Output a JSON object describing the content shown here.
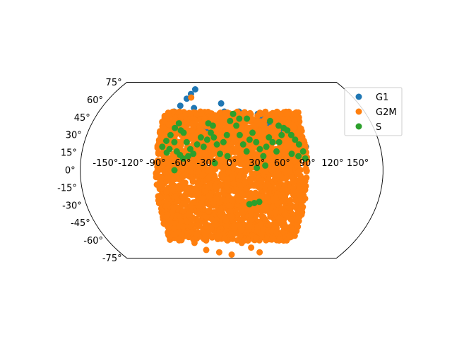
{
  "chart_data": {
    "type": "scatter",
    "projection": "kavrayskiy-vii (truncated at ±75° latitude)",
    "title": "",
    "xlabel": "",
    "ylabel": "",
    "xlim": [
      -180,
      180
    ],
    "ylim": [
      -75,
      75
    ],
    "x_ticks": [
      "-150°",
      "-120°",
      "-90°",
      "-60°",
      "-30°",
      "0°",
      "30°",
      "60°",
      "90°",
      "120°",
      "150°"
    ],
    "x_tick_values": [
      -150,
      -120,
      -90,
      -60,
      -30,
      0,
      30,
      60,
      90,
      120,
      150
    ],
    "y_ticks": [
      "75°",
      "60°",
      "45°",
      "30°",
      "15°",
      "0°",
      "-15°",
      "-30°",
      "-45°",
      "-60°",
      "-75°"
    ],
    "y_tick_values": [
      75,
      60,
      45,
      30,
      15,
      0,
      -15,
      -30,
      -45,
      -60,
      -75
    ],
    "grid": false,
    "legend_position": "top-right",
    "series": [
      {
        "name": "G1",
        "color": "#1f77b4",
        "description": "concentrated in the northern cap",
        "points": [
          [
            -58,
            69
          ],
          [
            -62,
            65
          ],
          [
            -66,
            61
          ],
          [
            -72,
            55
          ],
          [
            -78,
            50
          ],
          [
            -52,
            53
          ],
          [
            -45,
            44
          ],
          [
            -36,
            46
          ],
          [
            -27,
            40
          ],
          [
            -22,
            43
          ],
          [
            -15,
            57
          ],
          [
            -10,
            50
          ],
          [
            -5,
            48
          ],
          [
            5,
            48
          ],
          [
            10,
            50
          ],
          [
            18,
            48
          ],
          [
            22,
            46
          ],
          [
            26,
            44
          ],
          [
            30,
            42
          ],
          [
            35,
            48
          ],
          [
            38,
            44
          ],
          [
            40,
            42
          ],
          [
            44,
            46
          ],
          [
            48,
            40
          ],
          [
            52,
            38
          ],
          [
            58,
            44
          ],
          [
            64,
            45
          ],
          [
            68,
            40
          ],
          [
            72,
            38
          ],
          [
            76,
            35
          ],
          [
            82,
            32
          ],
          [
            86,
            28
          ],
          [
            90,
            20
          ],
          [
            -85,
            30
          ],
          [
            -88,
            22
          ],
          [
            -72,
            38
          ],
          [
            -64,
            32
          ],
          [
            -50,
            32
          ],
          [
            -32,
            34
          ],
          [
            -18,
            38
          ],
          [
            -8,
            30
          ],
          [
            8,
            36
          ],
          [
            16,
            38
          ],
          [
            24,
            32
          ],
          [
            42,
            36
          ],
          [
            55,
            40
          ],
          [
            62,
            34
          ],
          [
            74,
            30
          ],
          [
            80,
            26
          ],
          [
            12,
            42
          ],
          [
            2,
            40
          ],
          [
            -40,
            36
          ],
          [
            -60,
            40
          ],
          [
            -68,
            46
          ]
        ]
      },
      {
        "name": "G2M",
        "color": "#ff7f0e",
        "description": "densely fills the central region from about -90° to 90° longitude",
        "fill_region": {
          "lon": [
            -90,
            90
          ],
          "lat": [
            -60,
            50
          ]
        },
        "points": [
          [
            -60,
            62
          ],
          [
            -50,
            40
          ],
          [
            -40,
            34
          ],
          [
            -20,
            30
          ],
          [
            0,
            33
          ],
          [
            20,
            31
          ],
          [
            45,
            30
          ],
          [
            65,
            28
          ],
          [
            80,
            22
          ],
          [
            -70,
            -55
          ],
          [
            -55,
            -62
          ],
          [
            -40,
            -68
          ],
          [
            -20,
            -70
          ],
          [
            0,
            -72
          ],
          [
            15,
            -62
          ],
          [
            30,
            -66
          ],
          [
            45,
            -70
          ],
          [
            60,
            -58
          ],
          [
            72,
            -48
          ],
          [
            -80,
            -45
          ],
          [
            -82,
            -38
          ],
          [
            -65,
            -48
          ],
          [
            -10,
            -58
          ],
          [
            5,
            -54
          ],
          [
            35,
            -58
          ],
          [
            55,
            -52
          ],
          [
            85,
            -35
          ],
          [
            78,
            -42
          ]
        ]
      },
      {
        "name": "S",
        "color": "#2ca02c",
        "description": "scattered across the northern region, mostly 0° to 60° latitude",
        "points": [
          [
            -84,
            20
          ],
          [
            -80,
            25
          ],
          [
            -76,
            30
          ],
          [
            -72,
            36
          ],
          [
            -68,
            40
          ],
          [
            -64,
            34
          ],
          [
            -60,
            32
          ],
          [
            -55,
            24
          ],
          [
            -50,
            18
          ],
          [
            -46,
            14
          ],
          [
            -62,
            13
          ],
          [
            -66,
            16
          ],
          [
            -70,
            24
          ],
          [
            -75,
            18
          ],
          [
            -78,
            15
          ],
          [
            -58,
            10
          ],
          [
            -52,
            12
          ],
          [
            -42,
            22
          ],
          [
            -38,
            28
          ],
          [
            -34,
            20
          ],
          [
            -30,
            26
          ],
          [
            -26,
            32
          ],
          [
            -22,
            28
          ],
          [
            -18,
            22
          ],
          [
            -14,
            14
          ],
          [
            -10,
            24
          ],
          [
            -6,
            30
          ],
          [
            -2,
            42
          ],
          [
            2,
            48
          ],
          [
            6,
            38
          ],
          [
            10,
            30
          ],
          [
            14,
            22
          ],
          [
            18,
            16
          ],
          [
            22,
            26
          ],
          [
            26,
            32
          ],
          [
            30,
            24
          ],
          [
            34,
            18
          ],
          [
            38,
            12
          ],
          [
            42,
            20
          ],
          [
            46,
            28
          ],
          [
            50,
            24
          ],
          [
            54,
            16
          ],
          [
            58,
            24
          ],
          [
            62,
            30
          ],
          [
            66,
            36
          ],
          [
            70,
            34
          ],
          [
            74,
            30
          ],
          [
            78,
            26
          ],
          [
            82,
            22
          ],
          [
            86,
            16
          ],
          [
            88,
            10
          ],
          [
            -68,
            0
          ],
          [
            -20,
            6
          ],
          [
            -5,
            12
          ],
          [
            30,
            2
          ],
          [
            40,
            4
          ],
          [
            28,
            -28
          ],
          [
            34,
            -27
          ],
          [
            22,
            -29
          ],
          [
            -30,
            40
          ],
          [
            -24,
            38
          ],
          [
            50,
            42
          ],
          [
            60,
            38
          ],
          [
            72,
            14
          ],
          [
            80,
            12
          ],
          [
            10,
            44
          ],
          [
            20,
            44
          ]
        ]
      }
    ]
  }
}
